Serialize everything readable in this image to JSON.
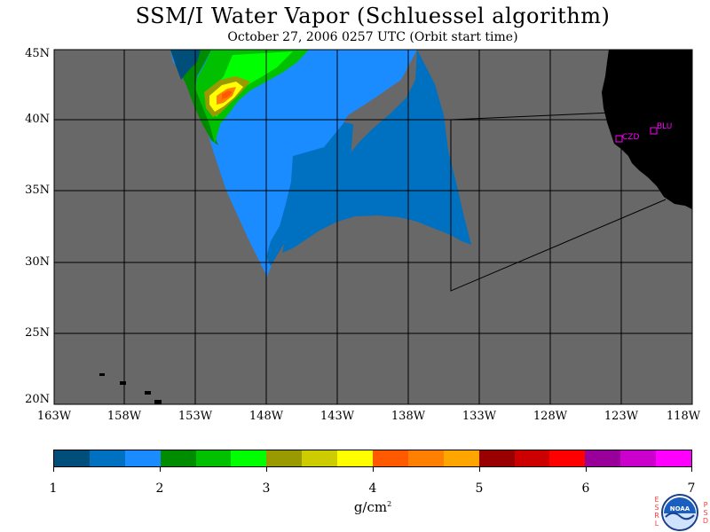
{
  "title": "SSM/I Water Vapor (Schluessel algorithm)",
  "subtitle": "October 27, 2006  0257 UTC  (Orbit start time)",
  "map": {
    "lat_labels": [
      "45N",
      "40N",
      "35N",
      "30N",
      "25N",
      "20N"
    ],
    "lon_labels": [
      "163W",
      "158W",
      "153W",
      "148W",
      "143W",
      "138W",
      "133W",
      "128W",
      "123W",
      "118W"
    ],
    "stations": [
      {
        "code": "CZD"
      },
      {
        "code": "BLU"
      }
    ],
    "colors": {
      "ocean_no_data": "#686868",
      "land": "#000000",
      "gridline": "#000000"
    }
  },
  "colorbar": {
    "ticks": [
      "1",
      "2",
      "3",
      "4",
      "5",
      "6",
      "7"
    ],
    "units_base": "g/cm",
    "units_exp": "2",
    "colors": [
      "#004f7a",
      "#0070c0",
      "#1a8cff",
      "#008c00",
      "#00c000",
      "#00ff00",
      "#999900",
      "#cccc00",
      "#ffff00",
      "#ff5a00",
      "#ff7f00",
      "#ffa500",
      "#990000",
      "#cc0000",
      "#ff0000",
      "#990099",
      "#cc00cc",
      "#ff00ff"
    ]
  },
  "logo": {
    "left_letters": [
      "E",
      "S",
      "R",
      "L"
    ],
    "right_letters": [
      "P",
      "S",
      "D"
    ],
    "text": "NOAA"
  }
}
